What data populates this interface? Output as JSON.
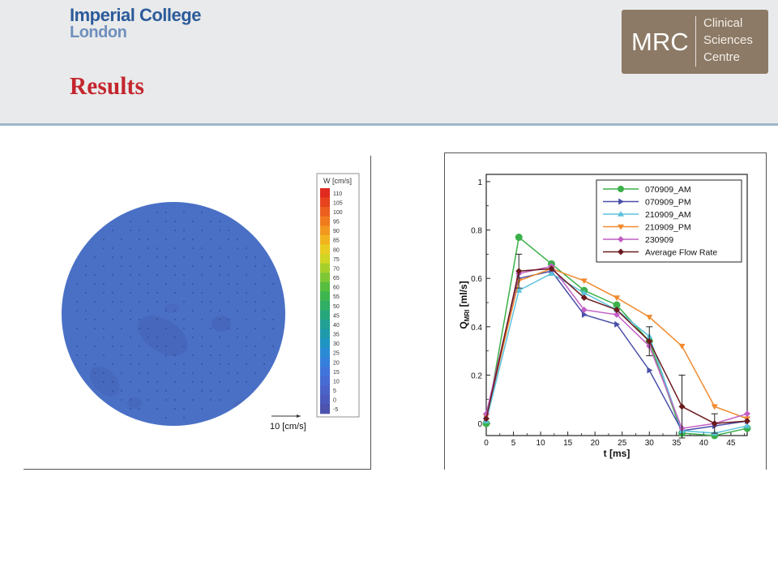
{
  "header": {
    "logo_line1": "Imperial College",
    "logo_line2": "London",
    "title": "Results",
    "mrc_main": "MRC",
    "mrc_sub_1": "Clinical",
    "mrc_sub_2": "Sciences",
    "mrc_sub_3": "Centre"
  },
  "colors": {
    "title": "#c4262e",
    "imperial_blue": "#2c5b9a",
    "mrc_brown": "#8c7a66",
    "disk_fill": "#4a70c6"
  },
  "velocity_plot": {
    "legend_title": "W [cm/s]",
    "legend_values": [
      "110",
      "105",
      "100",
      "95",
      "90",
      "85",
      "80",
      "75",
      "70",
      "65",
      "60",
      "55",
      "50",
      "45",
      "40",
      "35",
      "30",
      "25",
      "20",
      "15",
      "10",
      "5",
      "0",
      "-5"
    ],
    "legend_colors": [
      "#e02a1f",
      "#e6431e",
      "#ec5f1e",
      "#f07b1e",
      "#f3981e",
      "#f2b41e",
      "#e9cd20",
      "#cfd522",
      "#a7cf2a",
      "#7ec734",
      "#57bd3f",
      "#3db650",
      "#2fae64",
      "#26a67b",
      "#21a093",
      "#1e9aab",
      "#2094c2",
      "#2a8bd4",
      "#3580dd",
      "#3f75db",
      "#466bd3",
      "#4b62c8",
      "#4c5abb",
      "#4c53ae"
    ],
    "scale_label": "10 [cm/s]"
  },
  "chart_data": {
    "type": "line",
    "xlabel": "t [ms]",
    "ylabel": "Q_MRI [ml/s]",
    "ylabel_main": "Q",
    "ylabel_sub": "MRI",
    "ylabel_rest": " [ml/s]",
    "xlim": [
      0,
      48
    ],
    "ylim": [
      -0.05,
      1.03
    ],
    "xticks": [
      0,
      5,
      10,
      15,
      20,
      25,
      30,
      35,
      40,
      45
    ],
    "xtick_labels": [
      "0",
      "5",
      "10",
      "15",
      "20",
      "25",
      "30",
      "35",
      "40",
      "45"
    ],
    "yticks": [
      0,
      0.2,
      0.4,
      0.6,
      0.8,
      1
    ],
    "ytick_labels": [
      "0",
      "0.2",
      "0.4",
      "0.6",
      "0.8",
      "1"
    ],
    "grid": false,
    "legend_position": "top-right",
    "x": [
      0,
      6,
      12,
      18,
      24,
      30,
      36,
      42,
      48
    ],
    "series": [
      {
        "name": "070909_AM",
        "color": "#3cb04a",
        "marker": "circle",
        "values": [
          0.0,
          0.77,
          0.66,
          0.55,
          0.49,
          0.34,
          -0.04,
          -0.05,
          -0.02
        ]
      },
      {
        "name": "070909_PM",
        "color": "#4a4fa8",
        "marker": "triangle-right",
        "values": [
          0.02,
          0.6,
          0.63,
          0.45,
          0.41,
          0.22,
          -0.03,
          -0.01,
          0.01
        ]
      },
      {
        "name": "210909_AM",
        "color": "#5bc2dd",
        "marker": "triangle-up",
        "values": [
          0.01,
          0.55,
          0.62,
          0.54,
          0.47,
          0.36,
          -0.03,
          -0.04,
          -0.01
        ]
      },
      {
        "name": "210909_PM",
        "color": "#f08a2e",
        "marker": "triangle-down",
        "values": [
          0.03,
          0.59,
          0.64,
          0.59,
          0.52,
          0.44,
          0.32,
          0.07,
          0.02
        ]
      },
      {
        "name": "230909",
        "color": "#c25ec4",
        "marker": "diamond",
        "values": [
          0.04,
          0.62,
          0.65,
          0.47,
          0.45,
          0.32,
          -0.02,
          0.0,
          0.04
        ]
      },
      {
        "name": "Average Flow Rate",
        "color": "#6b1a1e",
        "marker": "diamond",
        "values": [
          0.02,
          0.63,
          0.64,
          0.52,
          0.47,
          0.34,
          0.07,
          0.0,
          0.01
        ],
        "error": [
          0.0,
          0.07,
          0.0,
          0.0,
          0.0,
          0.06,
          0.13,
          0.04,
          0.0
        ]
      }
    ]
  }
}
